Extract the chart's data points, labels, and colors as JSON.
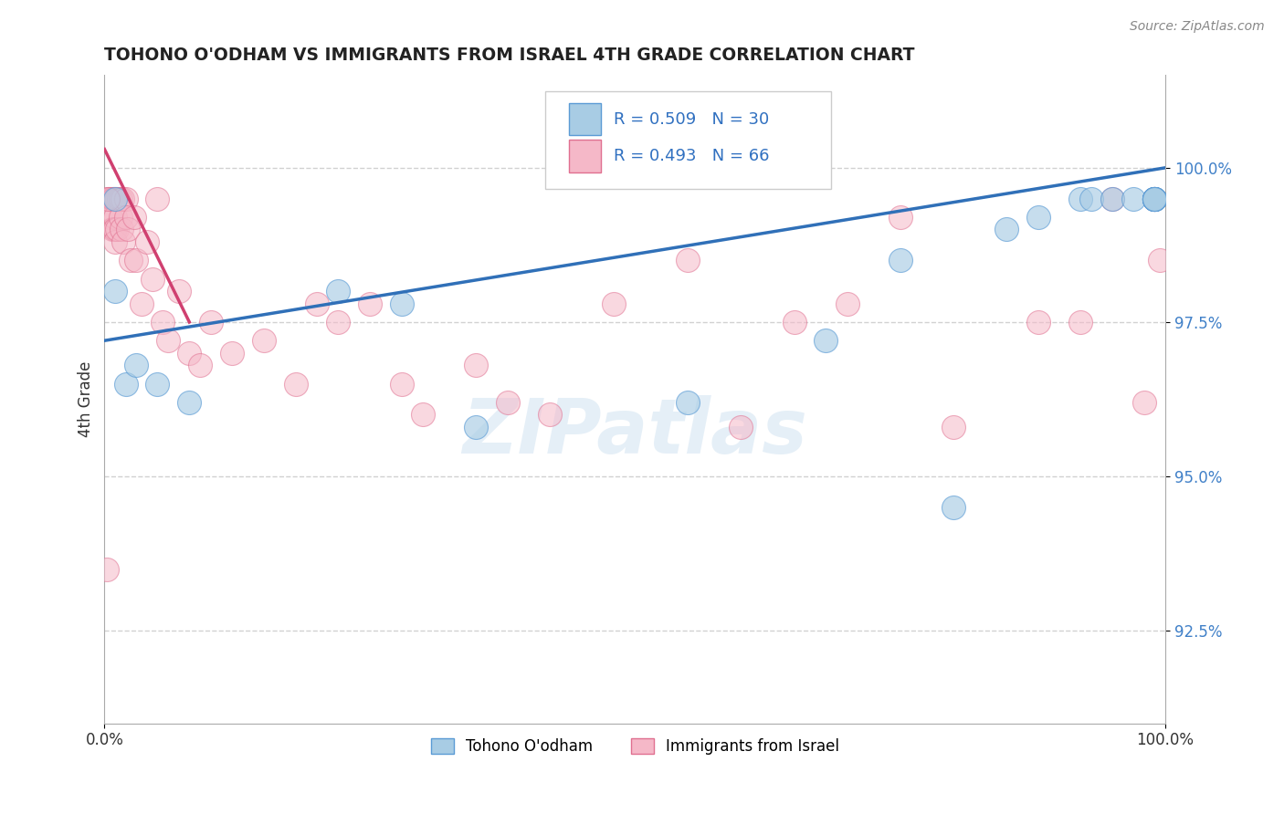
{
  "title": "TOHONO O'ODHAM VS IMMIGRANTS FROM ISRAEL 4TH GRADE CORRELATION CHART",
  "source_text": "Source: ZipAtlas.com",
  "ylabel": "4th Grade",
  "xlim": [
    0,
    100
  ],
  "ylim": [
    91.0,
    101.5
  ],
  "yticks": [
    92.5,
    95.0,
    97.5,
    100.0
  ],
  "xtick_labels": [
    "0.0%",
    "100.0%"
  ],
  "ytick_labels": [
    "92.5%",
    "95.0%",
    "97.5%",
    "100.0%"
  ],
  "legend_label_blue": "Tohono O'odham",
  "legend_label_pink": "Immigrants from Israel",
  "blue_color": "#a8cce4",
  "pink_color": "#f5b8c8",
  "blue_edge_color": "#5b9bd5",
  "pink_edge_color": "#e07090",
  "blue_line_color": "#3070b8",
  "pink_line_color": "#d04070",
  "watermark_color": "#cce0f0",
  "blue_trend_x0": 0,
  "blue_trend_y0": 97.2,
  "blue_trend_x1": 100,
  "blue_trend_y1": 100.0,
  "pink_trend_x0": 0,
  "pink_trend_y0": 100.2,
  "pink_trend_x1": 15,
  "pink_trend_y1": 97.8,
  "blue_scatter_x": [
    1,
    1,
    2,
    3,
    5,
    8,
    22,
    28,
    35,
    55,
    68,
    75,
    80,
    85,
    88,
    92,
    93,
    95,
    97,
    99,
    99,
    99,
    99,
    99,
    99,
    99,
    99,
    99,
    99,
    99
  ],
  "blue_scatter_y": [
    99.5,
    98.0,
    96.5,
    96.8,
    96.5,
    96.2,
    98.0,
    97.8,
    95.8,
    96.2,
    97.2,
    98.5,
    94.5,
    99.0,
    99.2,
    99.5,
    99.5,
    99.5,
    99.5,
    99.5,
    99.5,
    99.5,
    99.5,
    99.5,
    99.5,
    99.5,
    99.5,
    99.5,
    99.5,
    99.5
  ],
  "pink_scatter_x": [
    0.2,
    0.3,
    0.4,
    0.5,
    0.5,
    0.6,
    0.6,
    0.7,
    0.7,
    0.8,
    0.8,
    0.9,
    0.9,
    1.0,
    1.0,
    1.0,
    1.0,
    1.1,
    1.2,
    1.2,
    1.3,
    1.5,
    1.5,
    1.6,
    1.7,
    1.8,
    2.0,
    2.0,
    2.2,
    2.5,
    2.8,
    3.0,
    3.5,
    4.0,
    4.5,
    5.0,
    5.5,
    6.0,
    7.0,
    8.0,
    9.0,
    10.0,
    12.0,
    15.0,
    18.0,
    20.0,
    22.0,
    25.0,
    28.0,
    30.0,
    35.0,
    38.0,
    42.0,
    48.0,
    55.0,
    60.0,
    65.0,
    70.0,
    75.0,
    80.0,
    88.0,
    92.0,
    95.0,
    98.0,
    99.5,
    0.3
  ],
  "pink_scatter_y": [
    93.5,
    99.5,
    99.5,
    99.5,
    99.2,
    99.5,
    99.2,
    99.5,
    99.0,
    99.5,
    99.5,
    99.5,
    99.0,
    99.5,
    99.2,
    99.0,
    98.8,
    99.5,
    99.5,
    99.0,
    99.5,
    99.5,
    99.2,
    99.0,
    99.5,
    98.8,
    99.5,
    99.2,
    99.0,
    98.5,
    99.2,
    98.5,
    97.8,
    98.8,
    98.2,
    99.5,
    97.5,
    97.2,
    98.0,
    97.0,
    96.8,
    97.5,
    97.0,
    97.2,
    96.5,
    97.8,
    97.5,
    97.8,
    96.5,
    96.0,
    96.8,
    96.2,
    96.0,
    97.8,
    98.5,
    95.8,
    97.5,
    97.8,
    99.2,
    95.8,
    97.5,
    97.5,
    99.5,
    96.2,
    98.5,
    99.5
  ]
}
